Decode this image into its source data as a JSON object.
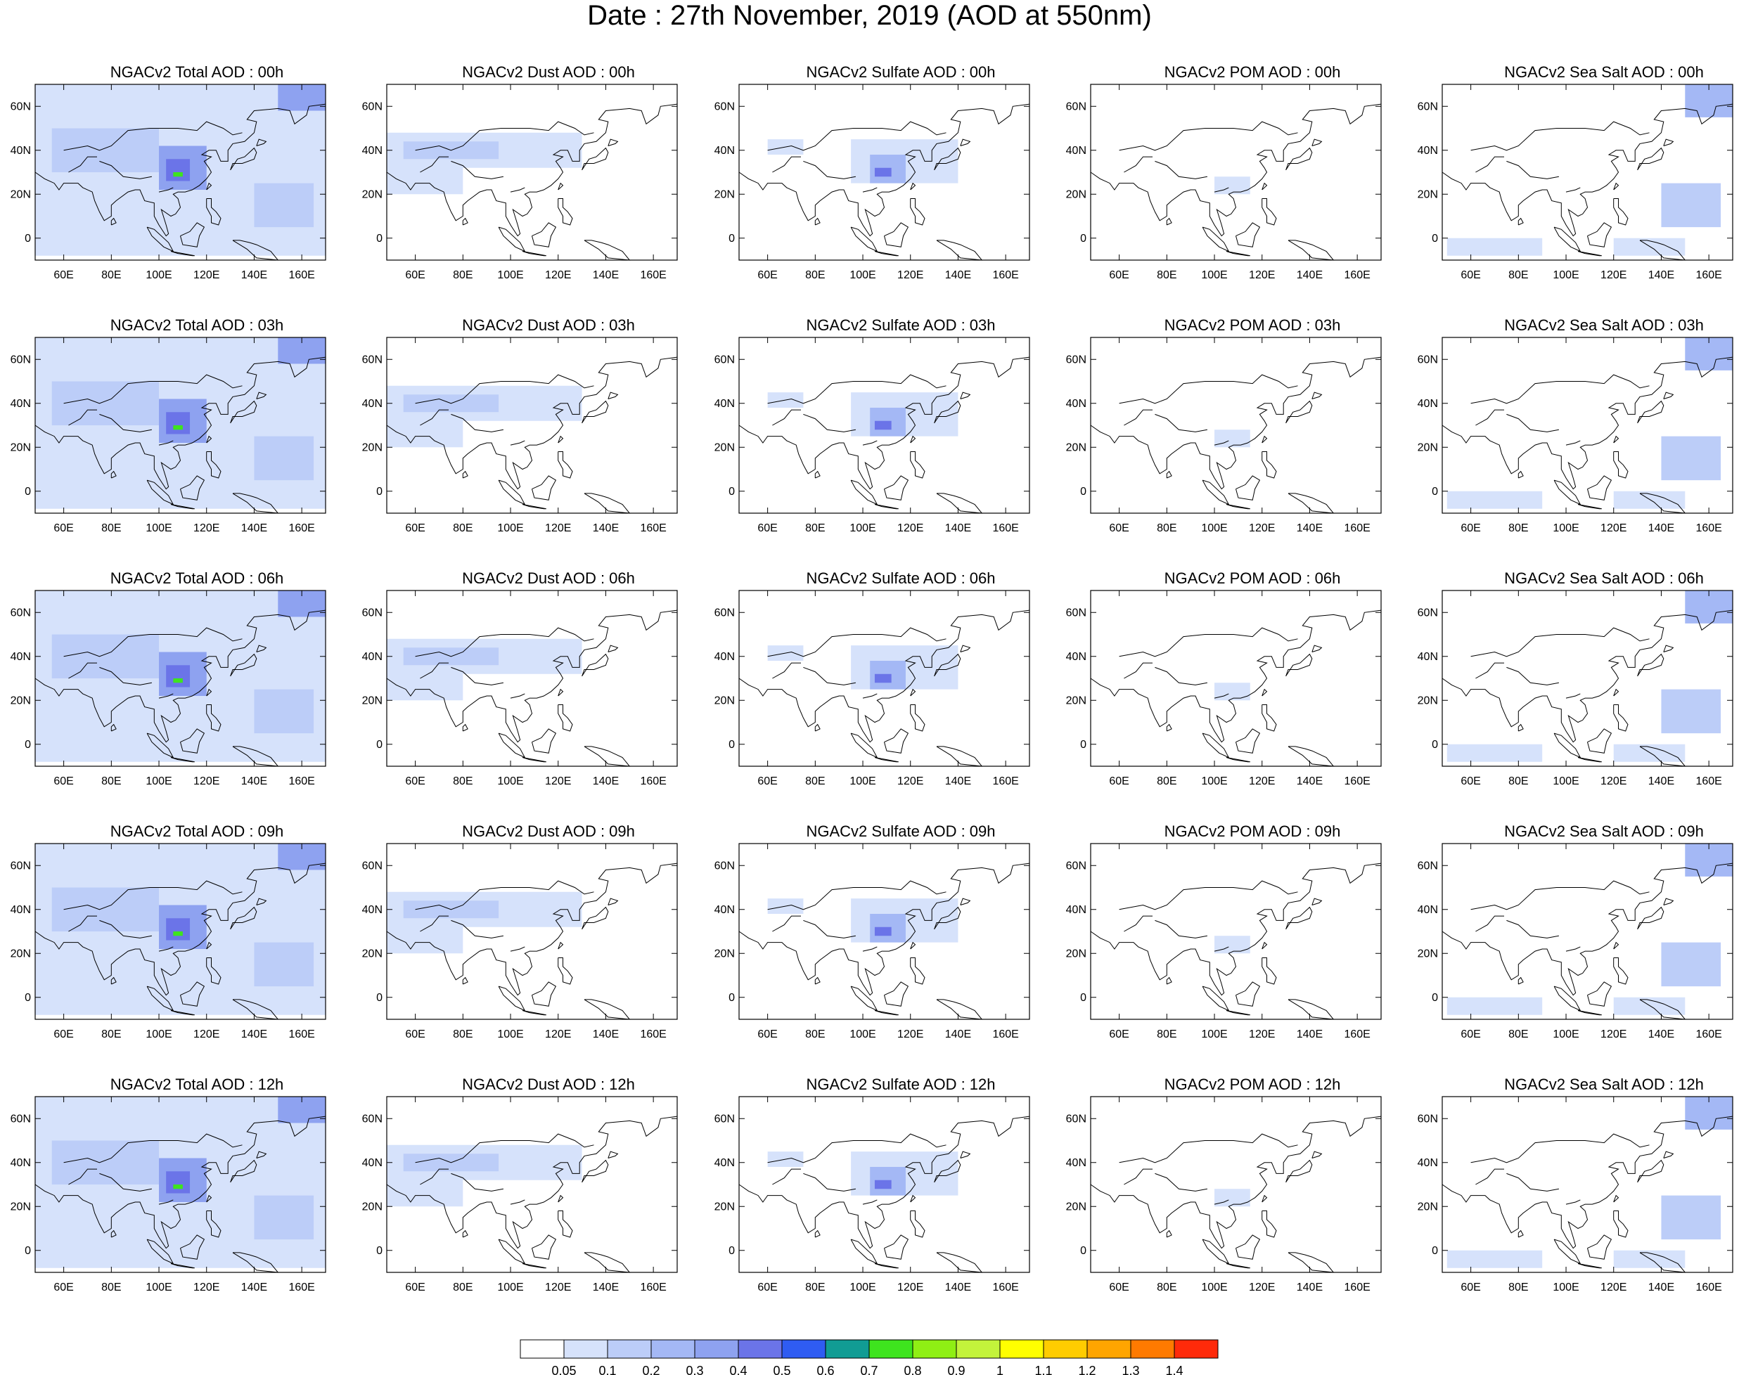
{
  "title": "Date : 27th November, 2019 (AOD at 550nm)",
  "chart_data": {
    "type": "heatmap",
    "title": "Date : 27th November, 2019 (AOD at 550nm)",
    "map_extent": {
      "lon": [
        48,
        170
      ],
      "lat": [
        -10,
        70
      ]
    },
    "x_ticks": [
      "60E",
      "80E",
      "100E",
      "120E",
      "140E",
      "160E"
    ],
    "y_ticks": [
      "60N",
      "40N",
      "20N",
      "0"
    ],
    "x_tick_values": [
      60,
      80,
      100,
      120,
      140,
      160
    ],
    "y_tick_values": [
      60,
      40,
      20,
      0
    ],
    "colorbar": {
      "labels": [
        "0.05",
        "0.1",
        "0.2",
        "0.3",
        "0.4",
        "0.5",
        "0.6",
        "0.7",
        "0.8",
        "0.9",
        "1",
        "1.1",
        "1.2",
        "1.3",
        "1.4"
      ],
      "colors": [
        "#ffffff",
        "#d6e2fb",
        "#bccdf8",
        "#a4b8f5",
        "#8ea2f0",
        "#6b74e8",
        "#2f5cf2",
        "#119c94",
        "#3ee41e",
        "#8fef14",
        "#c3f33b",
        "#ffff00",
        "#ffcc00",
        "#ffa500",
        "#ff7a00",
        "#ff2a0a"
      ]
    },
    "panels": [
      {
        "title": "NGACv2 Total AOD : 00h",
        "species": "total",
        "hour": 0
      },
      {
        "title": "NGACv2 Dust AOD : 00h",
        "species": "dust",
        "hour": 0
      },
      {
        "title": "NGACv2 Sulfate AOD : 00h",
        "species": "sulfate",
        "hour": 0
      },
      {
        "title": "NGACv2 POM AOD : 00h",
        "species": "pom",
        "hour": 0
      },
      {
        "title": "NGACv2 Sea Salt AOD : 00h",
        "species": "seasalt",
        "hour": 0
      },
      {
        "title": "NGACv2 Total AOD : 03h",
        "species": "total",
        "hour": 3
      },
      {
        "title": "NGACv2 Dust AOD : 03h",
        "species": "dust",
        "hour": 3
      },
      {
        "title": "NGACv2 Sulfate AOD : 03h",
        "species": "sulfate",
        "hour": 3
      },
      {
        "title": "NGACv2 POM AOD : 03h",
        "species": "pom",
        "hour": 3
      },
      {
        "title": "NGACv2 Sea Salt AOD : 03h",
        "species": "seasalt",
        "hour": 3
      },
      {
        "title": "NGACv2 Total AOD : 06h",
        "species": "total",
        "hour": 6
      },
      {
        "title": "NGACv2 Dust AOD : 06h",
        "species": "dust",
        "hour": 6
      },
      {
        "title": "NGACv2 Sulfate AOD : 06h",
        "species": "sulfate",
        "hour": 6
      },
      {
        "title": "NGACv2 POM AOD : 06h",
        "species": "pom",
        "hour": 6
      },
      {
        "title": "NGACv2 Sea Salt AOD : 06h",
        "species": "seasalt",
        "hour": 6
      },
      {
        "title": "NGACv2 Total AOD : 09h",
        "species": "total",
        "hour": 9
      },
      {
        "title": "NGACv2 Dust AOD : 09h",
        "species": "dust",
        "hour": 9
      },
      {
        "title": "NGACv2 Sulfate AOD : 09h",
        "species": "sulfate",
        "hour": 9
      },
      {
        "title": "NGACv2 POM AOD : 09h",
        "species": "pom",
        "hour": 9
      },
      {
        "title": "NGACv2 Sea Salt  AOD : 09h",
        "species": "seasalt",
        "hour": 9
      },
      {
        "title": "NGACv2 Total AOD  : 12h",
        "species": "total",
        "hour": 12
      },
      {
        "title": "NGACv2 Dust AOD : 12h",
        "species": "dust",
        "hour": 12
      },
      {
        "title": "NGACv2 Sulfate AOD : 12h",
        "species": "sulfate",
        "hour": 12
      },
      {
        "title": "NGACv2 POM  AOD : 12h",
        "species": "pom",
        "hour": 12
      },
      {
        "title": "NGACv2 Sea Salt  AOD : 12h",
        "species": "seasalt",
        "hour": 12
      }
    ],
    "aod_regions": {
      "total": [
        {
          "lon": [
            48,
            170
          ],
          "lat": [
            -8,
            70
          ],
          "aod": 0.08
        },
        {
          "lon": [
            55,
            100
          ],
          "lat": [
            30,
            50
          ],
          "aod": 0.15
        },
        {
          "lon": [
            100,
            120
          ],
          "lat": [
            22,
            42
          ],
          "aod": 0.3
        },
        {
          "lon": [
            103,
            113
          ],
          "lat": [
            26,
            36
          ],
          "aod": 0.45
        },
        {
          "lon": [
            106,
            110
          ],
          "lat": [
            28,
            30
          ],
          "aod": 0.75
        },
        {
          "lon": [
            150,
            170
          ],
          "lat": [
            58,
            70
          ],
          "aod": 0.3
        },
        {
          "lon": [
            140,
            165
          ],
          "lat": [
            5,
            25
          ],
          "aod": 0.15
        }
      ],
      "dust": [
        {
          "lon": [
            48,
            130
          ],
          "lat": [
            32,
            48
          ],
          "aod": 0.08
        },
        {
          "lon": [
            55,
            95
          ],
          "lat": [
            36,
            44
          ],
          "aod": 0.12
        },
        {
          "lon": [
            48,
            80
          ],
          "lat": [
            20,
            35
          ],
          "aod": 0.08
        }
      ],
      "sulfate": [
        {
          "lon": [
            95,
            140
          ],
          "lat": [
            25,
            45
          ],
          "aod": 0.08
        },
        {
          "lon": [
            103,
            118
          ],
          "lat": [
            25,
            38
          ],
          "aod": 0.2
        },
        {
          "lon": [
            105,
            112
          ],
          "lat": [
            28,
            32
          ],
          "aod": 0.4
        },
        {
          "lon": [
            60,
            75
          ],
          "lat": [
            38,
            45
          ],
          "aod": 0.08
        }
      ],
      "pom": [
        {
          "lon": [
            100,
            115
          ],
          "lat": [
            20,
            28
          ],
          "aod": 0.08
        }
      ],
      "seasalt": [
        {
          "lon": [
            150,
            170
          ],
          "lat": [
            55,
            70
          ],
          "aod": 0.2
        },
        {
          "lon": [
            140,
            165
          ],
          "lat": [
            5,
            25
          ],
          "aod": 0.1
        },
        {
          "lon": [
            120,
            150
          ],
          "lat": [
            -8,
            0
          ],
          "aod": 0.08
        },
        {
          "lon": [
            50,
            90
          ],
          "lat": [
            -8,
            0
          ],
          "aod": 0.08
        }
      ]
    }
  }
}
